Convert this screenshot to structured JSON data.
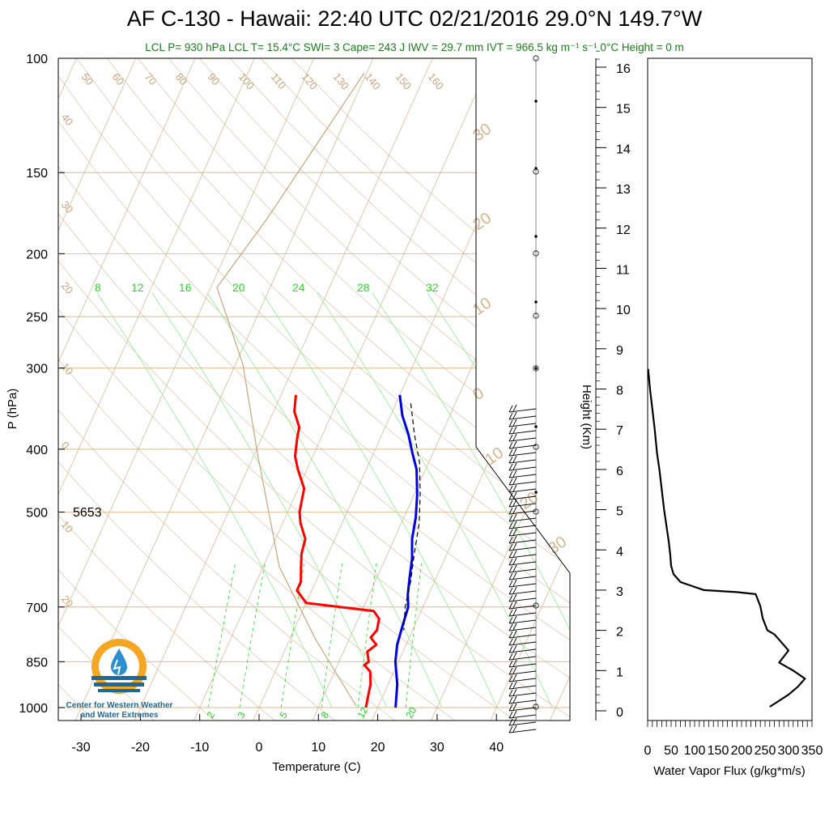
{
  "header": {
    "title": "AF C-130 - Hawaii: 22:40 UTC 02/21/2016  29.0°N 149.7°W",
    "subtitle": "LCL P= 930 hPa  LCL T= 15.4°C  SWI= 3  Cape= 243 J  IWV = 29.7 mm  IVT = 966.5 kg m⁻¹ s⁻¹  0°C Height = 0 m"
  },
  "logo": {
    "line1": "Center for Western Weather",
    "line2": "and Water Extremes",
    "colors": {
      "sun": "#f5a623",
      "water": "#1b6a9a",
      "drop": "#2a8fcf"
    }
  },
  "colors": {
    "temperature": "#ff0000",
    "dewpoint": "#0000e6",
    "isotherm": "#c8a57a",
    "mixing_ratio": "#33dd33",
    "parcel": "#000000",
    "flux": "#000000"
  },
  "chart_data": [
    {
      "type": "line",
      "name": "skew-t",
      "xlabel": "Temperature (C)",
      "ylabel": "P (hPa)",
      "xlim": [
        -33,
        52
      ],
      "ylim": [
        1050,
        100
      ],
      "log_y": true,
      "x_ticks": [
        "-30",
        "-20",
        "-10",
        "0",
        "10",
        "20",
        "30",
        "40"
      ],
      "y_ticks": [
        {
          "p": 100,
          "label": "100"
        },
        {
          "p": 150,
          "label": "150"
        },
        {
          "p": 200,
          "label": "200"
        },
        {
          "p": 250,
          "label": "250"
        },
        {
          "p": 300,
          "label": "300"
        },
        {
          "p": 400,
          "label": "400"
        },
        {
          "p": 500,
          "label": "500"
        },
        {
          "p": 700,
          "label": "700"
        },
        {
          "p": 850,
          "label": "850"
        },
        {
          "p": 1000,
          "label": "1000"
        }
      ],
      "annotation_500": "5653",
      "isotherm_labels": [
        "50",
        "60",
        "70",
        "80",
        "90",
        "100",
        "110",
        "120",
        "130",
        "140",
        "150",
        "160"
      ],
      "isotherm_left_labels": [
        "40",
        "30",
        "20",
        "10",
        "0",
        "10",
        "20"
      ],
      "isotherm_right_labels": [
        "30",
        "20",
        "10",
        "0",
        "10",
        "20",
        "30"
      ],
      "mixing_ratio_top_labels": [
        "8",
        "12",
        "16",
        "20",
        "24",
        "28",
        "32"
      ],
      "mixing_ratio_bottom_labels": [
        "2",
        "3",
        "5",
        "8",
        "12",
        "20"
      ],
      "series": [
        {
          "key": "temperature",
          "points": [
            [
              -17.5,
              330
            ],
            [
              -16.5,
              350
            ],
            [
              -14.5,
              370
            ],
            [
              -14,
              385
            ],
            [
              -13,
              410
            ],
            [
              -11.5,
              430
            ],
            [
              -9,
              460
            ],
            [
              -8.5,
              480
            ],
            [
              -8,
              500
            ],
            [
              -7,
              520
            ],
            [
              -5,
              550
            ],
            [
              -4.5,
              580
            ],
            [
              -3.5,
              610
            ],
            [
              -2.5,
              640
            ],
            [
              -2.5,
              660
            ],
            [
              0,
              690
            ],
            [
              12,
              710
            ],
            [
              13.5,
              730
            ],
            [
              14,
              760
            ],
            [
              13.5,
              780
            ],
            [
              15,
              800
            ],
            [
              14,
              820
            ],
            [
              15,
              850
            ],
            [
              14.5,
              860
            ],
            [
              16,
              880
            ],
            [
              17,
              920
            ],
            [
              17.5,
              960
            ],
            [
              18,
              1000
            ]
          ]
        },
        {
          "key": "dewpoint",
          "points": [
            [
              0,
              330
            ],
            [
              2,
              355
            ],
            [
              4.5,
              380
            ],
            [
              6.5,
              405
            ],
            [
              8.5,
              430
            ],
            [
              10.5,
              470
            ],
            [
              12,
              510
            ],
            [
              13,
              550
            ],
            [
              14.5,
              590
            ],
            [
              15.5,
              630
            ],
            [
              16.5,
              670
            ],
            [
              17.5,
              700
            ],
            [
              18,
              750
            ],
            [
              18.5,
              800
            ],
            [
              19.5,
              850
            ],
            [
              21.5,
              920
            ],
            [
              23,
              1000
            ]
          ]
        },
        {
          "key": "parcel",
          "dashed": true,
          "points": [
            [
              2.5,
              340
            ],
            [
              5.5,
              380
            ],
            [
              8.5,
              420
            ],
            [
              11,
              470
            ],
            [
              13,
              520
            ],
            [
              14.5,
              580
            ],
            [
              16,
              640
            ],
            [
              17,
              700
            ],
            [
              18.5,
              760
            ]
          ]
        }
      ]
    },
    {
      "type": "line",
      "name": "water-vapor-flux",
      "xlabel": "Water Vapor Flux (g/kg*m/s)",
      "ylabel": "Height (Km)",
      "xlim": [
        0,
        350
      ],
      "ylim": [
        0,
        16.5
      ],
      "x_ticks": [
        "0",
        "50",
        "100",
        "150",
        "200",
        "250",
        "300",
        "350"
      ],
      "y_ticks": [
        "0",
        "1",
        "2",
        "3",
        "4",
        "5",
        "6",
        "7",
        "8",
        "9",
        "10",
        "11",
        "12",
        "13",
        "14",
        "15",
        "16"
      ],
      "series": [
        {
          "key": "flux",
          "points": [
            [
              1,
              8.5
            ],
            [
              5,
              8
            ],
            [
              10,
              7.5
            ],
            [
              15,
              7
            ],
            [
              20,
              6.4
            ],
            [
              25,
              6
            ],
            [
              30,
              5.5
            ],
            [
              35,
              5
            ],
            [
              40,
              4.6
            ],
            [
              45,
              4.2
            ],
            [
              48,
              3.9
            ],
            [
              50,
              3.6
            ],
            [
              55,
              3.4
            ],
            [
              70,
              3.2
            ],
            [
              120,
              3.0
            ],
            [
              190,
              2.95
            ],
            [
              230,
              2.9
            ],
            [
              240,
              2.6
            ],
            [
              245,
              2.3
            ],
            [
              255,
              2.0
            ],
            [
              270,
              1.9
            ],
            [
              285,
              1.7
            ],
            [
              300,
              1.5
            ],
            [
              280,
              1.2
            ],
            [
              310,
              1.0
            ],
            [
              335,
              0.8
            ],
            [
              320,
              0.6
            ],
            [
              300,
              0.4
            ],
            [
              280,
              0.25
            ],
            [
              260,
              0.1
            ]
          ]
        }
      ]
    }
  ]
}
